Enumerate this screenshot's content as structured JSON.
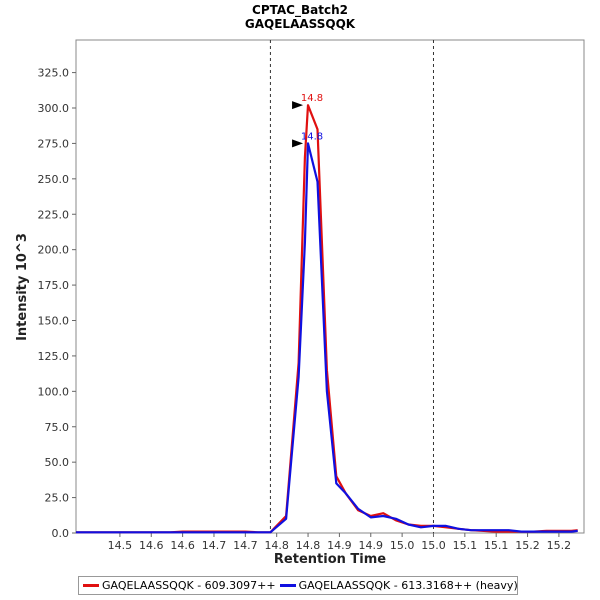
{
  "chart_data": {
    "type": "line",
    "title": "CPTAC_Batch2",
    "subtitle": "GAQELAASSQQK",
    "xlabel": "Retention Time",
    "ylabel": "Intensity 10^3",
    "xlim": [
      14.43,
      15.24
    ],
    "ylim": [
      0,
      348
    ],
    "x_ticks": [
      "14.5",
      "14.6",
      "14.6",
      "14.7",
      "14.7",
      "14.8",
      "14.8",
      "14.9",
      "14.9",
      "15.0",
      "15.0",
      "15.1",
      "15.1",
      "15.2",
      "15.2"
    ],
    "x_tick_values": [
      14.5,
      14.55,
      14.6,
      14.65,
      14.7,
      14.75,
      14.8,
      14.85,
      14.9,
      14.95,
      15.0,
      15.05,
      15.1,
      15.15,
      15.2
    ],
    "y_ticks": [
      "0.0",
      "25.0",
      "50.0",
      "75.0",
      "100.0",
      "125.0",
      "150.0",
      "175.0",
      "200.0",
      "225.0",
      "250.0",
      "275.0",
      "300.0",
      "325.0"
    ],
    "y_tick_values": [
      0,
      25,
      50,
      75,
      100,
      125,
      150,
      175,
      200,
      225,
      250,
      275,
      300,
      325
    ],
    "boundaries": [
      14.74,
      15.0
    ],
    "series": [
      {
        "name": "GAQELAASSQQK - 609.3097++",
        "color": "#e01010",
        "peak_label": "14.8",
        "peak": [
          14.8,
          302
        ],
        "x": [
          14.43,
          14.45,
          14.48,
          14.5,
          14.53,
          14.55,
          14.58,
          14.6,
          14.63,
          14.65,
          14.68,
          14.7,
          14.72,
          14.74,
          14.765,
          14.785,
          14.795,
          14.8,
          14.815,
          14.83,
          14.845,
          14.86,
          14.88,
          14.9,
          14.92,
          14.94,
          14.96,
          14.98,
          15.0,
          15.02,
          15.04,
          15.06,
          15.08,
          15.1,
          15.12,
          15.14,
          15.16,
          15.18,
          15.2,
          15.22,
          15.23
        ],
        "y": [
          0.5,
          0.5,
          0.5,
          0.5,
          0.5,
          0.5,
          0.5,
          1,
          1,
          1,
          1,
          1,
          0.5,
          0.5,
          12,
          120,
          265,
          302,
          285,
          115,
          40,
          28,
          16,
          12,
          14,
          9,
          6,
          5,
          5,
          4,
          3,
          2,
          1.5,
          1,
          1,
          1,
          1,
          1.5,
          1.5,
          1.5,
          2
        ]
      },
      {
        "name": "GAQELAASSQQK - 613.3168++ (heavy)",
        "color": "#1010e0",
        "peak_label": "14.8",
        "peak": [
          14.8,
          275
        ],
        "x": [
          14.43,
          14.45,
          14.48,
          14.5,
          14.53,
          14.55,
          14.58,
          14.6,
          14.63,
          14.65,
          14.68,
          14.7,
          14.72,
          14.74,
          14.765,
          14.785,
          14.795,
          14.8,
          14.815,
          14.83,
          14.845,
          14.86,
          14.88,
          14.9,
          14.92,
          14.94,
          14.96,
          14.98,
          15.0,
          15.02,
          15.04,
          15.06,
          15.08,
          15.1,
          15.12,
          15.14,
          15.16,
          15.18,
          15.2,
          15.22,
          15.23
        ],
        "y": [
          0.5,
          0.5,
          0.5,
          0.5,
          0.5,
          0.5,
          0.5,
          0.5,
          0.5,
          0.5,
          0.5,
          0.5,
          0.5,
          0.5,
          10,
          110,
          205,
          275,
          248,
          100,
          35,
          28,
          17,
          11,
          12,
          10,
          6,
          4,
          5,
          5,
          3,
          2,
          2,
          2,
          2,
          1,
          1,
          1,
          1,
          1,
          1.5
        ]
      }
    ],
    "legend_position": "bottom"
  }
}
